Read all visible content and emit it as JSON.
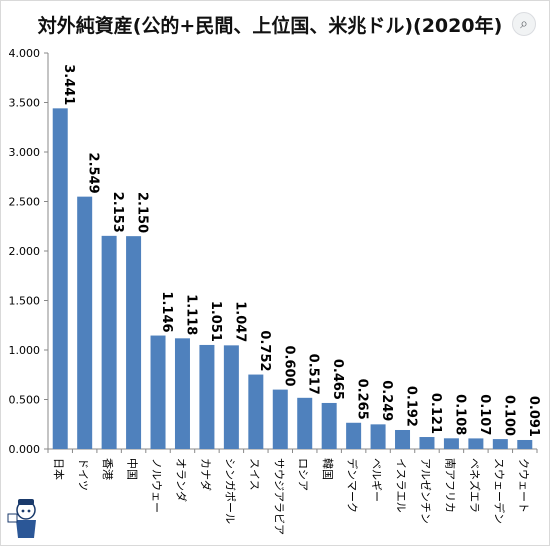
{
  "chart_data": {
    "type": "bar",
    "title": "対外純資産(公的+民間、上位国、米兆ドル)(2020年)",
    "categories": [
      "日本",
      "ドイツ",
      "香港",
      "中国",
      "ノルウェー",
      "オランダ",
      "カナダ",
      "シンガポール",
      "スイス",
      "サウジアラビア",
      "ロシア",
      "韓国",
      "デンマーク",
      "ベルギー",
      "イスラエル",
      "アルゼンチン",
      "南アフリカ",
      "ベネズエラ",
      "スウェーデン",
      "クウェート"
    ],
    "values": [
      3.441,
      2.549,
      2.153,
      2.15,
      1.146,
      1.118,
      1.051,
      1.047,
      0.752,
      0.6,
      0.517,
      0.465,
      0.265,
      0.249,
      0.192,
      0.121,
      0.108,
      0.107,
      0.1,
      0.091
    ],
    "data_labels": [
      "3.441",
      "2.549",
      "2.153",
      "2.150",
      "1.146",
      "1.118",
      "1.051",
      "1.047",
      "0.752",
      "0.600",
      "0.517",
      "0.465",
      "0.265",
      "0.249",
      "0.192",
      "0.121",
      "0.108",
      "0.107",
      "0.100",
      "0.091"
    ],
    "ylim": [
      0,
      4.0
    ],
    "yticks": [
      "0.000",
      "0.500",
      "1.000",
      "1.500",
      "2.000",
      "2.500",
      "3.000",
      "3.500",
      "4.000"
    ],
    "grid": false,
    "bar_color": "#4F81BD"
  },
  "ui": {
    "lens_icon": "visual-search-icon"
  }
}
